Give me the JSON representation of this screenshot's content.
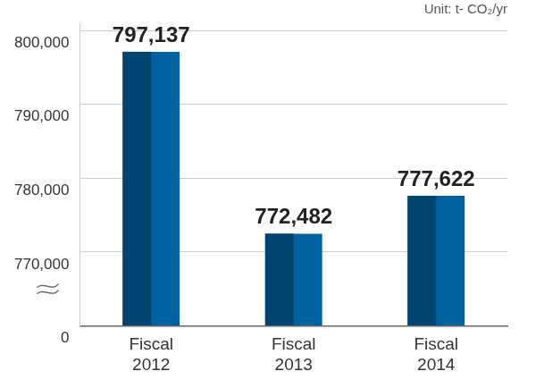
{
  "chart_data": {
    "type": "bar",
    "ylabel": "Unit: t- CO₂/yr",
    "categories": [
      "Fiscal 2012",
      "Fiscal 2013",
      "Fiscal 2014"
    ],
    "values": [
      797137,
      772482,
      777622
    ],
    "value_labels": [
      "797,137",
      "772,482",
      "777,622"
    ],
    "color": "#0063a0",
    "ylim": [
      0,
      801000
    ],
    "yticks": [
      0,
      {
        "value": 770000,
        "label": "770,000"
      },
      {
        "value": 780000,
        "label": "780,000"
      },
      {
        "value": 790000,
        "label": "790,000"
      },
      {
        "value": 800000,
        "label": "800,000"
      }
    ],
    "grid": true,
    "data_labels": true
  }
}
